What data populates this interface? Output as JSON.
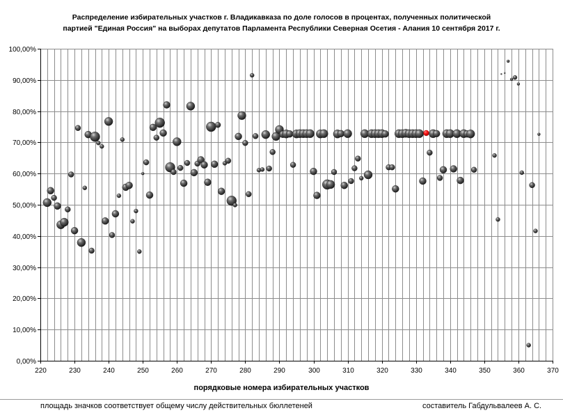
{
  "chart_data": {
    "type": "scatter",
    "title_line1": "Распределение избирательных участков г. Владикавказа по доле голосов в процентах, полученных политической",
    "title_line2": "партией \"Единая Россия\" на выборах депутатов Парламента Республики Северная Осетия - Алания 10 сентября 2017 г.",
    "xlabel": "порядковые номера избирательных участков",
    "ylabel": "",
    "xlim": [
      220,
      370
    ],
    "ylim": [
      0,
      100
    ],
    "x_ticks": [
      "220",
      "230",
      "240",
      "250",
      "260",
      "270",
      "280",
      "290",
      "300",
      "310",
      "320",
      "330",
      "340",
      "350",
      "360",
      "370"
    ],
    "y_ticks": [
      "0,00%",
      "10,00%",
      "20,00%",
      "30,00%",
      "40,00%",
      "50,00%",
      "60,00%",
      "70,00%",
      "80,00%",
      "90,00%",
      "100,00%"
    ],
    "grid": true,
    "marker_color": "#4a4a4a",
    "highlight_color": "#ff0000",
    "series": [
      {
        "points": [
          [
            222,
            50.7,
            6
          ],
          [
            223,
            54.5,
            5
          ],
          [
            224,
            52.2,
            4
          ],
          [
            225,
            49.6,
            5
          ],
          [
            226,
            43.6,
            6
          ],
          [
            227,
            44.4,
            6
          ],
          [
            228,
            48.5,
            4
          ],
          [
            229,
            59.7,
            4
          ],
          [
            230,
            41.7,
            5
          ],
          [
            231,
            74.6,
            4
          ],
          [
            232,
            37.9,
            6
          ],
          [
            233,
            55.4,
            3
          ],
          [
            234,
            72.5,
            5
          ],
          [
            235,
            35.3,
            4
          ],
          [
            236,
            71.8,
            7
          ],
          [
            237,
            69.8,
            3
          ],
          [
            238,
            68.7,
            3
          ],
          [
            239,
            44.8,
            5
          ],
          [
            240,
            76.7,
            6
          ],
          [
            241,
            40.3,
            4
          ],
          [
            242,
            47.1,
            5
          ],
          [
            243,
            52.9,
            3
          ],
          [
            244,
            70.9,
            3
          ],
          [
            245,
            55.6,
            5
          ],
          [
            246,
            56.2,
            5
          ],
          [
            247,
            44.7,
            3
          ],
          [
            248,
            48.0,
            3
          ],
          [
            249,
            35.0,
            3
          ],
          [
            250,
            60.0,
            2
          ],
          [
            251,
            63.6,
            4
          ],
          [
            252,
            53.1,
            5
          ],
          [
            253,
            74.8,
            5
          ],
          [
            254,
            71.5,
            4
          ],
          [
            255,
            76.3,
            7
          ],
          [
            256,
            73.0,
            5
          ],
          [
            257,
            82.0,
            5
          ],
          [
            258,
            62.0,
            7
          ],
          [
            259,
            60.5,
            4
          ],
          [
            260,
            70.2,
            6
          ],
          [
            261,
            61.8,
            4
          ],
          [
            262,
            56.9,
            5
          ],
          [
            263,
            63.4,
            4
          ],
          [
            264,
            81.6,
            6
          ],
          [
            265,
            60.3,
            5
          ],
          [
            266,
            63.2,
            4
          ],
          [
            267,
            64.4,
            5
          ],
          [
            268,
            62.8,
            5
          ],
          [
            269,
            57.2,
            5
          ],
          [
            270,
            75.0,
            7
          ],
          [
            271,
            63.0,
            5
          ],
          [
            272,
            75.6,
            4
          ],
          [
            273,
            54.3,
            5
          ],
          [
            274,
            63.3,
            3
          ],
          [
            275,
            64.1,
            4
          ],
          [
            276,
            51.3,
            7
          ],
          [
            277,
            49.9,
            3
          ],
          [
            278,
            71.9,
            5
          ],
          [
            279,
            78.6,
            6
          ],
          [
            280,
            69.8,
            4
          ],
          [
            281,
            53.4,
            4
          ],
          [
            282,
            91.5,
            3
          ],
          [
            283,
            72.0,
            4
          ],
          [
            284,
            61.1,
            3
          ],
          [
            285,
            61.3,
            3
          ],
          [
            286,
            72.5,
            6
          ],
          [
            287,
            61.6,
            4
          ],
          [
            288,
            66.9,
            4
          ],
          [
            289,
            71.9,
            6
          ],
          [
            290,
            74.1,
            6
          ],
          [
            291,
            72.6,
            5
          ],
          [
            292,
            72.7,
            6
          ],
          [
            293,
            72.7,
            5
          ],
          [
            294,
            62.8,
            4
          ],
          [
            295,
            72.7,
            6
          ],
          [
            296,
            72.8,
            6
          ],
          [
            297,
            72.8,
            6
          ],
          [
            298,
            72.8,
            6
          ],
          [
            299,
            72.8,
            6
          ],
          [
            300,
            60.7,
            5
          ],
          [
            301,
            53.0,
            5
          ],
          [
            302,
            72.7,
            6
          ],
          [
            303,
            72.8,
            6
          ],
          [
            304,
            56.5,
            7
          ],
          [
            305,
            56.5,
            6
          ],
          [
            306,
            60.5,
            4
          ],
          [
            307,
            72.7,
            6
          ],
          [
            308,
            72.8,
            5
          ],
          [
            309,
            56.2,
            5
          ],
          [
            310,
            72.8,
            6
          ],
          [
            311,
            57.6,
            4
          ],
          [
            312,
            61.7,
            4
          ],
          [
            313,
            64.8,
            4
          ],
          [
            314,
            58.5,
            3
          ],
          [
            315,
            72.8,
            6
          ],
          [
            316,
            59.6,
            6
          ],
          [
            317,
            72.8,
            6
          ],
          [
            318,
            72.8,
            6
          ],
          [
            319,
            72.8,
            6
          ],
          [
            320,
            72.8,
            6
          ],
          [
            321,
            72.7,
            5
          ],
          [
            322,
            62.0,
            4
          ],
          [
            323,
            62.0,
            4
          ],
          [
            324,
            55.1,
            5
          ],
          [
            325,
            72.8,
            6
          ],
          [
            326,
            72.8,
            6
          ],
          [
            327,
            72.9,
            6
          ],
          [
            328,
            72.8,
            6
          ],
          [
            329,
            72.8,
            6
          ],
          [
            330,
            72.8,
            6
          ],
          [
            331,
            72.8,
            6
          ],
          [
            332,
            57.6,
            5
          ],
          [
            333,
            73.0,
            4,
            "highlight"
          ],
          [
            334,
            66.7,
            4
          ],
          [
            335,
            72.8,
            6
          ],
          [
            336,
            72.8,
            5
          ],
          [
            337,
            58.6,
            4
          ],
          [
            338,
            61.2,
            5
          ],
          [
            339,
            72.8,
            6
          ],
          [
            340,
            72.8,
            6
          ],
          [
            341,
            61.5,
            5
          ],
          [
            342,
            72.8,
            6
          ],
          [
            343,
            57.8,
            5
          ],
          [
            344,
            72.8,
            6
          ],
          [
            345,
            72.7,
            5
          ],
          [
            346,
            72.7,
            6
          ],
          [
            347,
            61.2,
            4
          ],
          [
            353,
            65.8,
            3
          ],
          [
            354,
            45.3,
            3
          ],
          [
            355,
            91.9,
            1
          ],
          [
            356,
            92.2,
            1
          ],
          [
            357,
            96.0,
            2
          ],
          [
            358,
            90.2,
            2
          ],
          [
            359,
            90.8,
            3
          ],
          [
            360,
            88.7,
            2
          ],
          [
            361,
            60.3,
            3
          ],
          [
            363,
            5.0,
            3
          ],
          [
            364,
            56.3,
            4
          ],
          [
            365,
            41.6,
            3
          ],
          [
            366,
            72.6,
            2
          ]
        ]
      }
    ]
  },
  "footer": {
    "left_note": "площадь значков соответствует общему числу действительных бюллетеней",
    "right_note": "составитель Габдульвалеев А. С."
  }
}
